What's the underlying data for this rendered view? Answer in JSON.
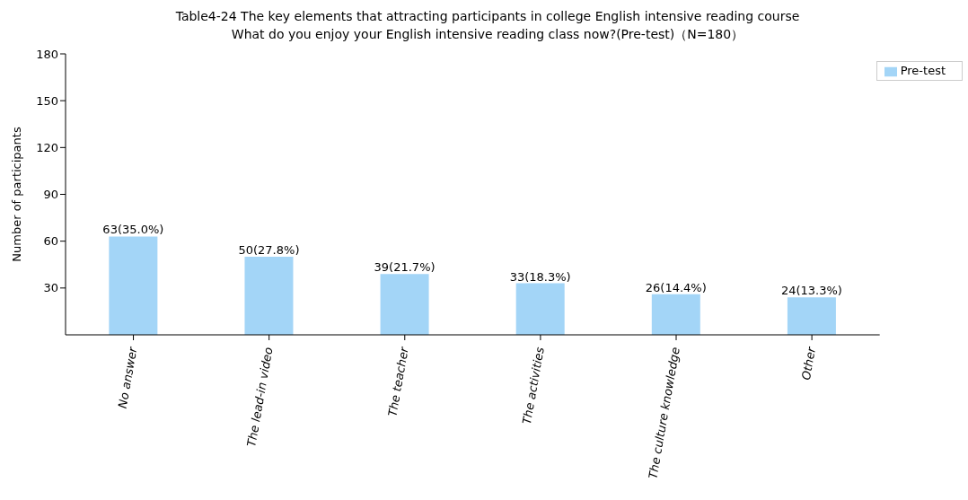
{
  "chart_data": {
    "type": "bar",
    "title": "Table4-24 The key elements that attracting participants in college English intensive reading course",
    "subtitle": "What do you enjoy your English intensive reading class now?(Pre-test)（N=180）",
    "ylabel": "Number of participants",
    "categories": [
      "No answer",
      "The lead-in video",
      "The teacher",
      "The activities",
      "The culture knowledge",
      "Other"
    ],
    "series": [
      {
        "name": "Pre-test",
        "color": "#a3d5f7",
        "values": [
          63,
          50,
          39,
          33,
          26,
          24
        ],
        "value_labels": [
          "63(35.0%)",
          "50(27.8%)",
          "39(21.7%)",
          "33(18.3%)",
          "26(14.4%)",
          "24(13.3%)"
        ]
      }
    ],
    "ylim": [
      0,
      180
    ],
    "yticks": [
      30,
      60,
      90,
      120,
      150,
      180
    ],
    "legend": "top right"
  }
}
